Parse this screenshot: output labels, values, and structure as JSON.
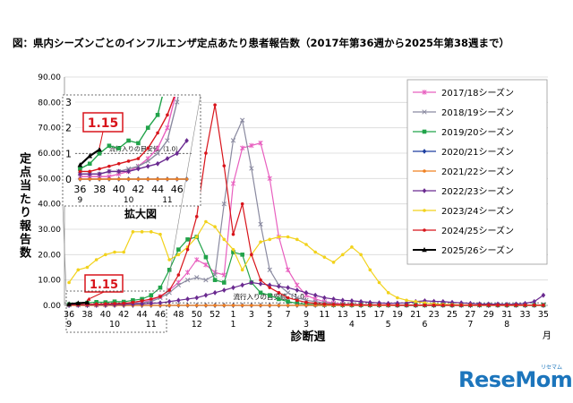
{
  "title": "図：県内シーズンごとのインフルエンザ定点あたり患者報告数（2017年第36週から2025年第38週まで）",
  "logo": {
    "text": "ReseMom",
    "small": "リセマム"
  },
  "chart_data": {
    "type": "line",
    "title": "図：県内シーズンごとのインフルエンザ定点あたり患者報告数（2017年第36週から2025年第38週まで）",
    "ylabel": "定点当たり報告数",
    "xlabel": "診断週",
    "month_unit": "月",
    "ylim": [
      0,
      90
    ],
    "yticks": [
      "0.00",
      "10.00",
      "20.00",
      "30.00",
      "40.00",
      "50.00",
      "60.00",
      "70.00",
      "80.00",
      "90.00"
    ],
    "xticks": [
      "36",
      "38",
      "40",
      "42",
      "44",
      "46",
      "48",
      "50",
      "52",
      "1",
      "3",
      "5",
      "7",
      "9",
      "11",
      "13",
      "15",
      "17",
      "19",
      "21",
      "23",
      "25",
      "27",
      "29",
      "31",
      "33",
      "35"
    ],
    "month_labels": [
      {
        "label": "9",
        "week_index": 0
      },
      {
        "label": "10",
        "week_index": 5
      },
      {
        "label": "11",
        "week_index": 9
      },
      {
        "label": "12",
        "week_index": 14
      },
      {
        "label": "1",
        "week_index": 18
      },
      {
        "label": "2",
        "week_index": 22
      },
      {
        "label": "3",
        "week_index": 26
      },
      {
        "label": "4",
        "week_index": 31
      },
      {
        "label": "5",
        "week_index": 35
      },
      {
        "label": "6",
        "week_index": 39
      },
      {
        "label": "7",
        "week_index": 44
      },
      {
        "label": "8",
        "week_index": 48
      }
    ],
    "threshold": {
      "value": 1.0,
      "label": "流行入りの目安値（1.0）"
    },
    "current_value": {
      "label": "1.15",
      "week_index": 2
    },
    "legend_position": "right",
    "series": [
      {
        "name": "2017/18シーズン",
        "color": "#e85fbf",
        "marker": "star",
        "values": [
          0.1,
          0.1,
          0.1,
          0.1,
          0.2,
          0.3,
          0.5,
          0.8,
          1.2,
          2,
          3.5,
          6,
          9,
          13,
          18,
          16,
          13,
          12,
          48,
          62,
          63,
          64,
          50,
          27,
          14,
          8,
          4,
          2.5,
          1.5,
          1,
          0.6,
          0.4,
          0.3,
          0.2,
          0.2,
          0.1,
          0.1,
          0.1,
          0.1,
          0.1,
          0.1,
          0.1,
          0.1,
          0.1,
          0.1,
          0.1,
          0.1,
          0.1,
          0.1,
          0.1,
          0.1,
          0.1,
          0.1
        ]
      },
      {
        "name": "2018/19シーズン",
        "color": "#8a8aa0",
        "marker": "x",
        "values": [
          0.2,
          0.2,
          0.2,
          0.3,
          0.3,
          0.4,
          0.5,
          0.7,
          1,
          1.5,
          3,
          5,
          8,
          10,
          11,
          10,
          12,
          40,
          65,
          73,
          54,
          32,
          14,
          8,
          5,
          3,
          2,
          1.5,
          1,
          0.6,
          0.4,
          0.3,
          0.2,
          0.2,
          0.2,
          0.1,
          0.1,
          0.1,
          0.1,
          0.1,
          0.1,
          0.1,
          0.1,
          0.1,
          0.1,
          0.1,
          0.1,
          0.1,
          0.1,
          0.1,
          0.1,
          0.1,
          0.1
        ]
      },
      {
        "name": "2019/20シーズン",
        "color": "#21a34a",
        "marker": "square",
        "values": [
          0.4,
          0.6,
          1,
          1.3,
          1.2,
          1.5,
          1.4,
          2,
          2.5,
          4,
          7,
          14,
          22,
          26,
          27,
          19,
          10,
          9,
          21,
          20,
          9,
          5,
          4,
          2.5,
          1.5,
          0.8,
          0.5,
          0.3,
          0.2,
          0.1,
          0.1,
          0.1,
          0.1,
          0.1,
          0.1,
          0.1,
          0.1,
          0.1,
          0.1,
          0.1,
          0.1,
          0.1,
          0.1,
          0.1,
          0.1,
          0.1,
          0.1,
          0.1,
          0.1,
          0.1,
          0.1,
          0.1,
          0.1
        ]
      },
      {
        "name": "2020/21シーズン",
        "color": "#1e3fa0",
        "marker": "diamond",
        "values": [
          0,
          0,
          0,
          0,
          0,
          0,
          0,
          0,
          0,
          0,
          0,
          0,
          0,
          0,
          0,
          0,
          0,
          0,
          0,
          0,
          0,
          0,
          0,
          0,
          0,
          0,
          0,
          0,
          0,
          0,
          0,
          0,
          0,
          0,
          0,
          0,
          0,
          0,
          0,
          0,
          0,
          0,
          0,
          0,
          0,
          0,
          0,
          0,
          0,
          0,
          0,
          0,
          0
        ]
      },
      {
        "name": "2021/22シーズン",
        "color": "#f08020",
        "marker": "circle",
        "values": [
          0,
          0,
          0,
          0,
          0,
          0,
          0,
          0,
          0,
          0,
          0,
          0,
          0,
          0,
          0,
          0,
          0,
          0,
          0,
          0,
          0,
          0,
          0,
          0,
          0,
          0,
          0,
          0,
          0,
          0,
          0,
          0,
          0,
          0,
          0,
          0,
          0,
          0,
          0,
          0,
          0,
          0,
          0,
          0,
          0,
          0,
          0,
          0,
          0,
          0,
          0,
          0,
          0
        ]
      },
      {
        "name": "2022/23シーズン",
        "color": "#6a2a90",
        "marker": "diamond",
        "values": [
          0.2,
          0.2,
          0.2,
          0.3,
          0.3,
          0.3,
          0.4,
          0.5,
          0.6,
          0.8,
          1,
          1.5,
          2,
          2.5,
          3,
          4,
          5,
          6,
          7,
          8,
          9,
          8.5,
          8,
          7.5,
          7,
          6,
          5,
          4,
          3,
          2.5,
          2,
          1.8,
          1.5,
          1.2,
          1,
          0.8,
          0.9,
          1,
          1.5,
          1.8,
          1.6,
          1.5,
          1.2,
          1,
          0.8,
          0.6,
          0.5,
          0.5,
          0.4,
          0.5,
          0.8,
          1.5,
          4
        ]
      },
      {
        "name": "2023/24シーズン",
        "color": "#f2d21c",
        "marker": "circle",
        "values": [
          9,
          14,
          15,
          18,
          20,
          21,
          21,
          29,
          29,
          29,
          28,
          18,
          20,
          23,
          27,
          33,
          31,
          26,
          22,
          14,
          20,
          25,
          26,
          27,
          27,
          26,
          24,
          21,
          19,
          17,
          20,
          23,
          20,
          14,
          9,
          5,
          3,
          2,
          1.5,
          1,
          0.6,
          0.4,
          0.3,
          0.2,
          0.2,
          0.1,
          0.1,
          0.1,
          0.1,
          0.1,
          0.1,
          0.1,
          0.1
        ]
      },
      {
        "name": "2024/25シーズン",
        "color": "#d8141b",
        "marker": "circle",
        "values": [
          0.3,
          0.3,
          0.4,
          0.5,
          0.6,
          0.7,
          0.8,
          1.2,
          1.8,
          2.5,
          3.5,
          6,
          12,
          22,
          35,
          60,
          79,
          55,
          28,
          40,
          20,
          10,
          7,
          5,
          3,
          2,
          1.2,
          0.8,
          0.5,
          0.4,
          0.3,
          0.3,
          0.2,
          0.2,
          0.2,
          0.2,
          0.1,
          0.1,
          0.1,
          0.1,
          0.1,
          0.1,
          0.1,
          0.1,
          0.1,
          0.1,
          0.1,
          0.1,
          0.1,
          0.1,
          0.1,
          0.1,
          0.1
        ]
      },
      {
        "name": "2025/26シーズン",
        "color": "#000000",
        "marker": "triangle",
        "values": [
          0.55,
          0.9,
          1.15
        ]
      }
    ],
    "inset": {
      "label": "拡大図",
      "ylim": [
        0,
        3
      ],
      "yticks": [
        "0",
        "1",
        "2",
        "3"
      ],
      "xticks": [
        "36",
        "38",
        "40",
        "42",
        "44",
        "46"
      ],
      "month_labels": [
        {
          "label": "9",
          "week_index": 0
        },
        {
          "label": "10",
          "week_index": 5
        },
        {
          "label": "11",
          "week_index": 9
        }
      ],
      "threshold_label": "流行入りの目安値（1.0）",
      "current_value_label": "1.15"
    }
  }
}
